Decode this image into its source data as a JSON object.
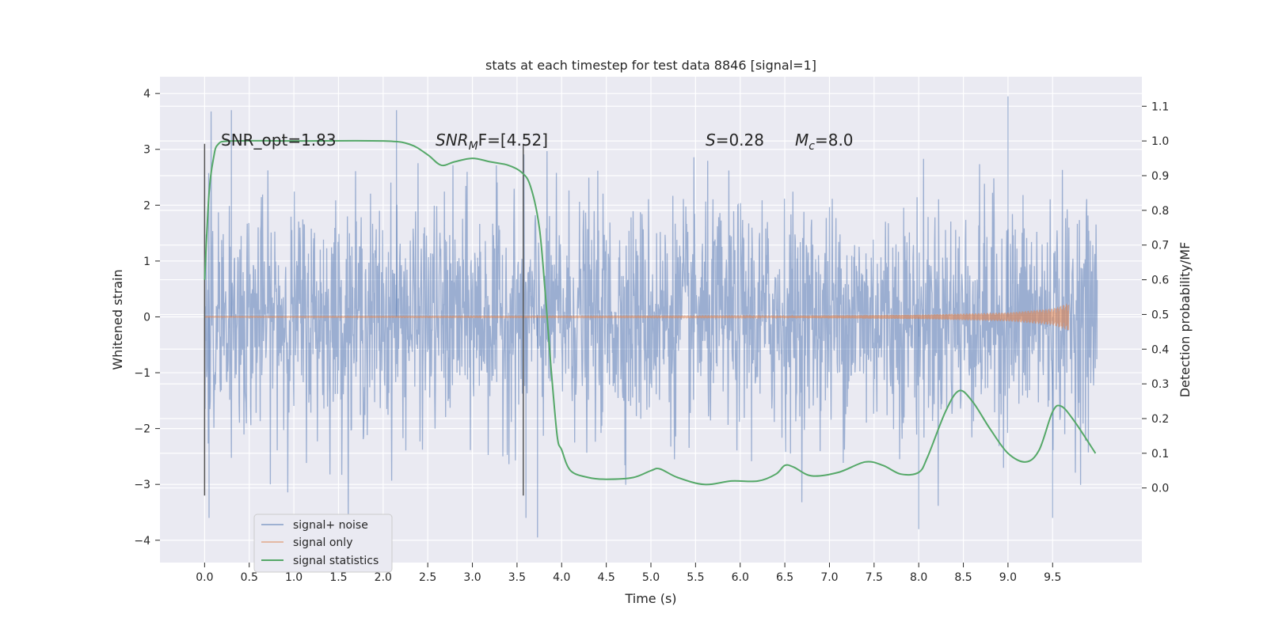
{
  "chart_data": {
    "type": "line",
    "title": "stats at each timestep for test data 8846 [signal=1]",
    "xlabel": "Time (s)",
    "ylabel": "Whitened strain",
    "y2label": "Detection probability/MF",
    "xlim": [
      -0.5,
      10.5
    ],
    "ylim": [
      -4.4,
      4.3
    ],
    "y2lim": [
      -0.215,
      1.185
    ],
    "x_ticks": [
      "0.0",
      "0.5",
      "1.0",
      "1.5",
      "2.0",
      "2.5",
      "3.0",
      "3.5",
      "4.0",
      "4.5",
      "5.0",
      "5.5",
      "6.0",
      "6.5",
      "7.0",
      "7.5",
      "8.0",
      "8.5",
      "9.0",
      "9.5"
    ],
    "y_ticks": [
      "−4",
      "−3",
      "−2",
      "−1",
      "0",
      "1",
      "2",
      "3",
      "4"
    ],
    "y2_ticks": [
      "0.0",
      "0.1",
      "0.2",
      "0.3",
      "0.4",
      "0.5",
      "0.6",
      "0.7",
      "0.8",
      "0.9",
      "1.0",
      "1.1"
    ],
    "grid": true,
    "legend_position": "lower-left",
    "colors": {
      "background": "#eaeaf2",
      "grid": "#ffffff",
      "noise": "#4c72b0",
      "signal": "#dd8452",
      "statistics": "#55a868",
      "marker_line": "#555555"
    },
    "series": [
      {
        "name": "signal+ noise",
        "axis": "left",
        "x_range": [
          0.0,
          10.0
        ],
        "typical_envelope": [
          -1.5,
          1.8
        ],
        "extreme_range": [
          -4.0,
          3.9
        ],
        "peaks": [
          [
            0.3,
            3.7
          ],
          [
            2.15,
            3.7
          ],
          [
            9.0,
            3.95
          ],
          [
            3.6,
            -3.6
          ],
          [
            3.73,
            -3.95
          ],
          [
            9.5,
            -3.6
          ],
          [
            8.0,
            -3.8
          ],
          [
            0.05,
            -3.6
          ]
        ]
      },
      {
        "name": "signal only",
        "axis": "left",
        "x_range": [
          0.0,
          9.68
        ],
        "amplitude_points": [
          [
            0.0,
            0.005
          ],
          [
            6.0,
            0.01
          ],
          [
            8.0,
            0.04
          ],
          [
            9.0,
            0.08
          ],
          [
            9.5,
            0.15
          ],
          [
            9.68,
            0.25
          ]
        ]
      },
      {
        "name": "signal statistics",
        "axis": "right",
        "points": [
          [
            0.0,
            0.6
          ],
          [
            0.05,
            0.85
          ],
          [
            0.1,
            0.95
          ],
          [
            0.15,
            0.99
          ],
          [
            0.3,
            1.0
          ],
          [
            1.0,
            1.0
          ],
          [
            2.0,
            1.0
          ],
          [
            2.3,
            0.99
          ],
          [
            2.5,
            0.96
          ],
          [
            2.65,
            0.93
          ],
          [
            2.8,
            0.94
          ],
          [
            3.0,
            0.95
          ],
          [
            3.2,
            0.94
          ],
          [
            3.4,
            0.93
          ],
          [
            3.55,
            0.91
          ],
          [
            3.65,
            0.87
          ],
          [
            3.75,
            0.75
          ],
          [
            3.82,
            0.55
          ],
          [
            3.88,
            0.35
          ],
          [
            3.95,
            0.15
          ],
          [
            4.0,
            0.11
          ],
          [
            4.1,
            0.05
          ],
          [
            4.3,
            0.03
          ],
          [
            4.5,
            0.025
          ],
          [
            4.8,
            0.03
          ],
          [
            5.0,
            0.05
          ],
          [
            5.1,
            0.055
          ],
          [
            5.3,
            0.03
          ],
          [
            5.6,
            0.01
          ],
          [
            5.9,
            0.02
          ],
          [
            6.2,
            0.02
          ],
          [
            6.4,
            0.04
          ],
          [
            6.5,
            0.065
          ],
          [
            6.6,
            0.06
          ],
          [
            6.8,
            0.035
          ],
          [
            7.1,
            0.045
          ],
          [
            7.4,
            0.075
          ],
          [
            7.6,
            0.065
          ],
          [
            7.8,
            0.04
          ],
          [
            8.0,
            0.045
          ],
          [
            8.1,
            0.09
          ],
          [
            8.3,
            0.22
          ],
          [
            8.45,
            0.28
          ],
          [
            8.6,
            0.25
          ],
          [
            8.8,
            0.17
          ],
          [
            9.0,
            0.1
          ],
          [
            9.2,
            0.075
          ],
          [
            9.35,
            0.11
          ],
          [
            9.5,
            0.22
          ],
          [
            9.6,
            0.235
          ],
          [
            9.75,
            0.19
          ],
          [
            9.98,
            0.1
          ]
        ]
      }
    ],
    "markers": [
      {
        "x": 0.0,
        "y_range": [
          -3.2,
          3.1
        ]
      },
      {
        "x": 3.57,
        "y_range": [
          -3.2,
          3.1
        ]
      }
    ],
    "annotations": [
      {
        "text": "SNR_opt=1.83"
      },
      {
        "text": "SNRMF=[4.52]",
        "base": "SNR",
        "sub": "M",
        "rest": "F=[4.52]"
      },
      {
        "text": "S=0.28",
        "base": "S",
        "rest": "=0.28"
      },
      {
        "text": "Mc=8.0",
        "base": "M",
        "sub": "c",
        "rest": "=8.0"
      }
    ]
  }
}
